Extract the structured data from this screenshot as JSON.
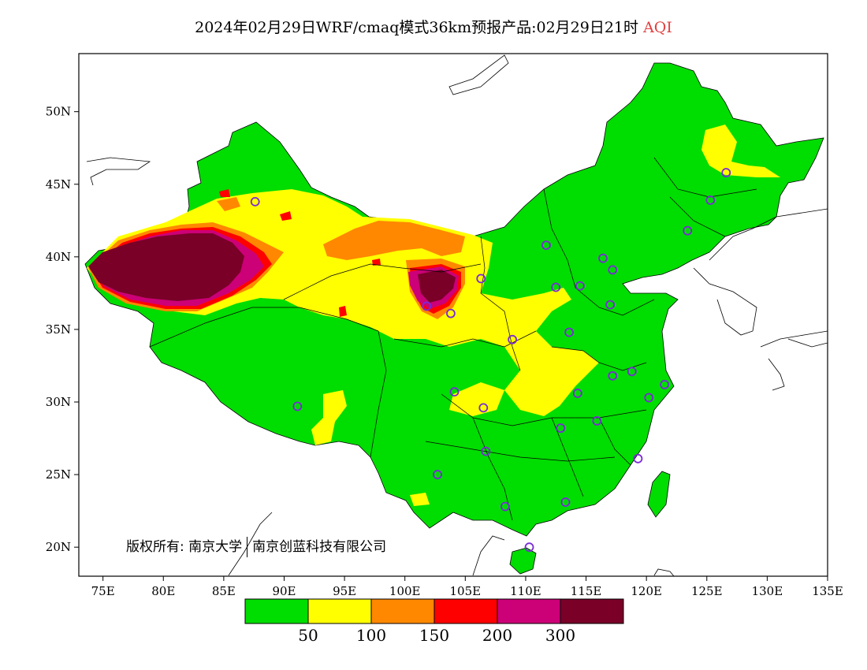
{
  "title": {
    "main": "2024年02月29日WRF/cmaq模式36km预报产品:02月29日21时",
    "variable": "AQI"
  },
  "axes": {
    "lon_min": 73,
    "lon_max": 135,
    "lat_min": 18,
    "lat_max": 54,
    "lon_ticks": [
      {
        "value": 75,
        "label": "75E"
      },
      {
        "value": 80,
        "label": "80E"
      },
      {
        "value": 85,
        "label": "85E"
      },
      {
        "value": 90,
        "label": "90E"
      },
      {
        "value": 95,
        "label": "95E"
      },
      {
        "value": 100,
        "label": "100E"
      },
      {
        "value": 105,
        "label": "105E"
      },
      {
        "value": 110,
        "label": "110E"
      },
      {
        "value": 115,
        "label": "115E"
      },
      {
        "value": 120,
        "label": "120E"
      },
      {
        "value": 125,
        "label": "125E"
      },
      {
        "value": 130,
        "label": "130E"
      },
      {
        "value": 135,
        "label": "135E"
      }
    ],
    "lat_ticks": [
      {
        "value": 20,
        "label": "20N"
      },
      {
        "value": 25,
        "label": "25N"
      },
      {
        "value": 30,
        "label": "30N"
      },
      {
        "value": 35,
        "label": "35N"
      },
      {
        "value": 40,
        "label": "40N"
      },
      {
        "value": 45,
        "label": "45N"
      },
      {
        "value": 50,
        "label": "50N"
      }
    ]
  },
  "legend": {
    "colors": [
      "#00dd00",
      "#ffff00",
      "#ff8800",
      "#ff0000",
      "#cc0077",
      "#7a0028"
    ],
    "labels": [
      "50",
      "100",
      "150",
      "200",
      "300"
    ]
  },
  "copyright": {
    "prefix": "版权所有:",
    "org1": "南京大学",
    "org2": "南京创蓝科技有限公司"
  },
  "stations": [
    {
      "lon": 87.6,
      "lat": 43.8
    },
    {
      "lon": 91.1,
      "lat": 29.7
    },
    {
      "lon": 101.8,
      "lat": 36.6
    },
    {
      "lon": 103.8,
      "lat": 36.1
    },
    {
      "lon": 106.3,
      "lat": 38.5
    },
    {
      "lon": 104.1,
      "lat": 30.7
    },
    {
      "lon": 106.5,
      "lat": 29.6
    },
    {
      "lon": 106.7,
      "lat": 26.6
    },
    {
      "lon": 102.7,
      "lat": 25.0
    },
    {
      "lon": 108.3,
      "lat": 22.8
    },
    {
      "lon": 110.3,
      "lat": 20.0
    },
    {
      "lon": 113.3,
      "lat": 23.1
    },
    {
      "lon": 112.9,
      "lat": 28.2
    },
    {
      "lon": 115.9,
      "lat": 28.7
    },
    {
      "lon": 114.3,
      "lat": 30.6
    },
    {
      "lon": 117.2,
      "lat": 31.8
    },
    {
      "lon": 118.8,
      "lat": 32.1
    },
    {
      "lon": 120.2,
      "lat": 30.3
    },
    {
      "lon": 121.5,
      "lat": 31.2
    },
    {
      "lon": 119.3,
      "lat": 26.1
    },
    {
      "lon": 113.6,
      "lat": 34.8
    },
    {
      "lon": 108.9,
      "lat": 34.3
    },
    {
      "lon": 112.5,
      "lat": 37.9
    },
    {
      "lon": 114.5,
      "lat": 38.0
    },
    {
      "lon": 117.0,
      "lat": 36.7
    },
    {
      "lon": 116.4,
      "lat": 39.9
    },
    {
      "lon": 117.2,
      "lat": 39.1
    },
    {
      "lon": 111.7,
      "lat": 40.8
    },
    {
      "lon": 123.4,
      "lat": 41.8
    },
    {
      "lon": 125.3,
      "lat": 43.9
    },
    {
      "lon": 126.6,
      "lat": 45.8
    }
  ]
}
